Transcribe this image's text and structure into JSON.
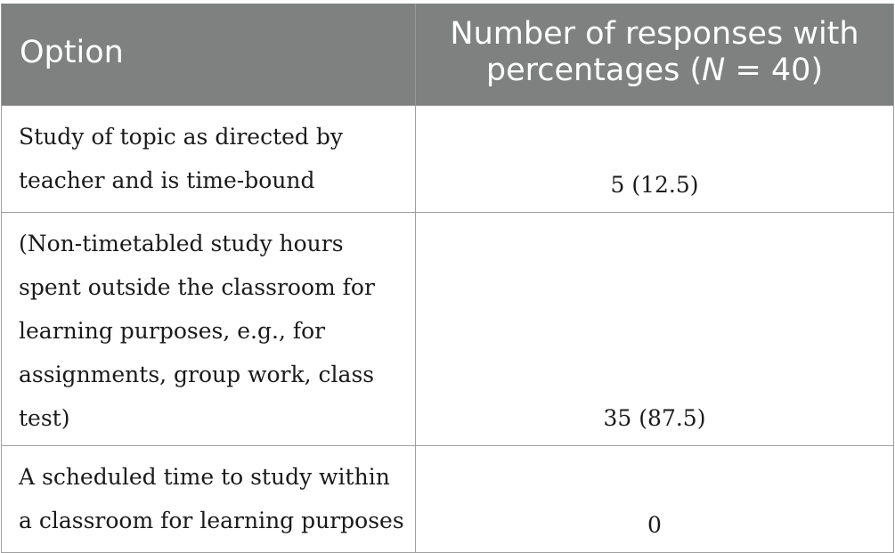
{
  "table": {
    "header": {
      "option": "Option",
      "responses_line1": "Number of responses with",
      "responses_line2_prefix": "percentages (",
      "responses_n": "N",
      "responses_line2_suffix": " = 40)"
    },
    "rows": [
      {
        "option": "Study of topic as directed by teacher and is time-bound",
        "responses": "5 (12.5)"
      },
      {
        "option": "(Non-timetabled study hours spent outside the classroom for learning purposes, e.g., for assignments, group work, class test)",
        "responses": "35 (87.5)"
      },
      {
        "option": "A scheduled time to study within a classroom for learning purposes",
        "responses": "0"
      }
    ]
  }
}
